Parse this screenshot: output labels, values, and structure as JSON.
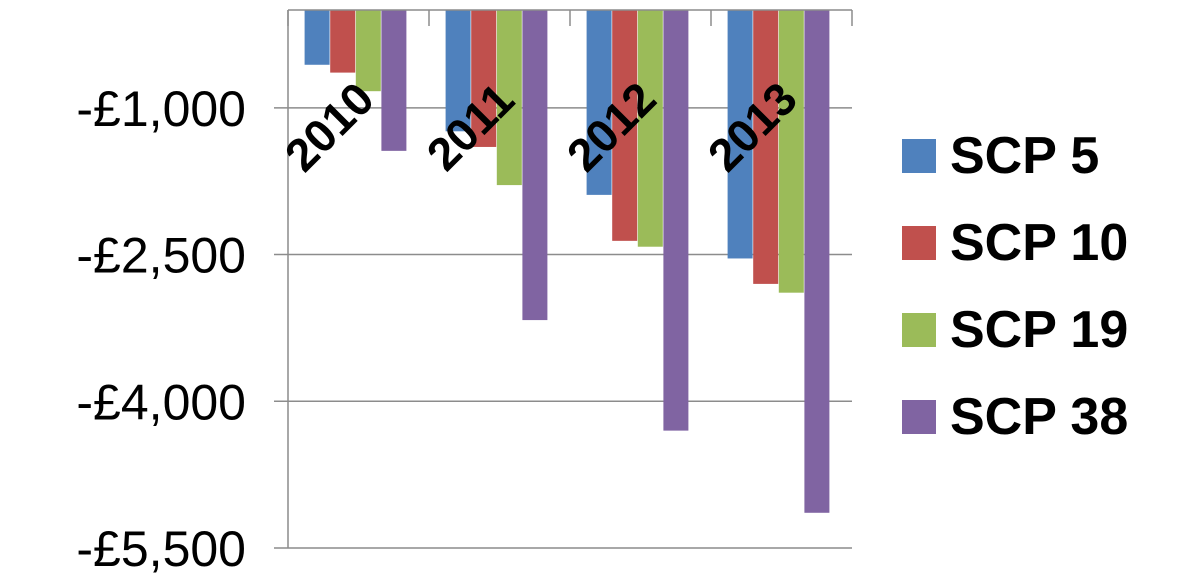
{
  "chart_data": {
    "type": "bar",
    "categories": [
      "2010",
      "2011",
      "2012",
      "2013"
    ],
    "series": [
      {
        "name": "SCP 5",
        "color": "#4F81BD",
        "values": [
          -560,
          -1240,
          -1890,
          -2540
        ]
      },
      {
        "name": "SCP 10",
        "color": "#C0504D",
        "values": [
          -640,
          -1400,
          -2360,
          -2800
        ]
      },
      {
        "name": "SCP 19",
        "color": "#9BBB59",
        "values": [
          -830,
          -1790,
          -2420,
          -2890
        ]
      },
      {
        "name": "SCP 38",
        "color": "#8064A2",
        "values": [
          -1440,
          -3170,
          -4300,
          -5140
        ]
      }
    ],
    "title": "",
    "xlabel": "",
    "ylabel": "",
    "ylim": [
      -5500,
      0
    ],
    "yticks": [
      -1000,
      -2500,
      -4000,
      -5500
    ],
    "ytick_labels": [
      "-£1,000",
      "-£2,500",
      "-£4,000",
      "-£5,500"
    ],
    "grid": true,
    "legend_position": "right"
  }
}
